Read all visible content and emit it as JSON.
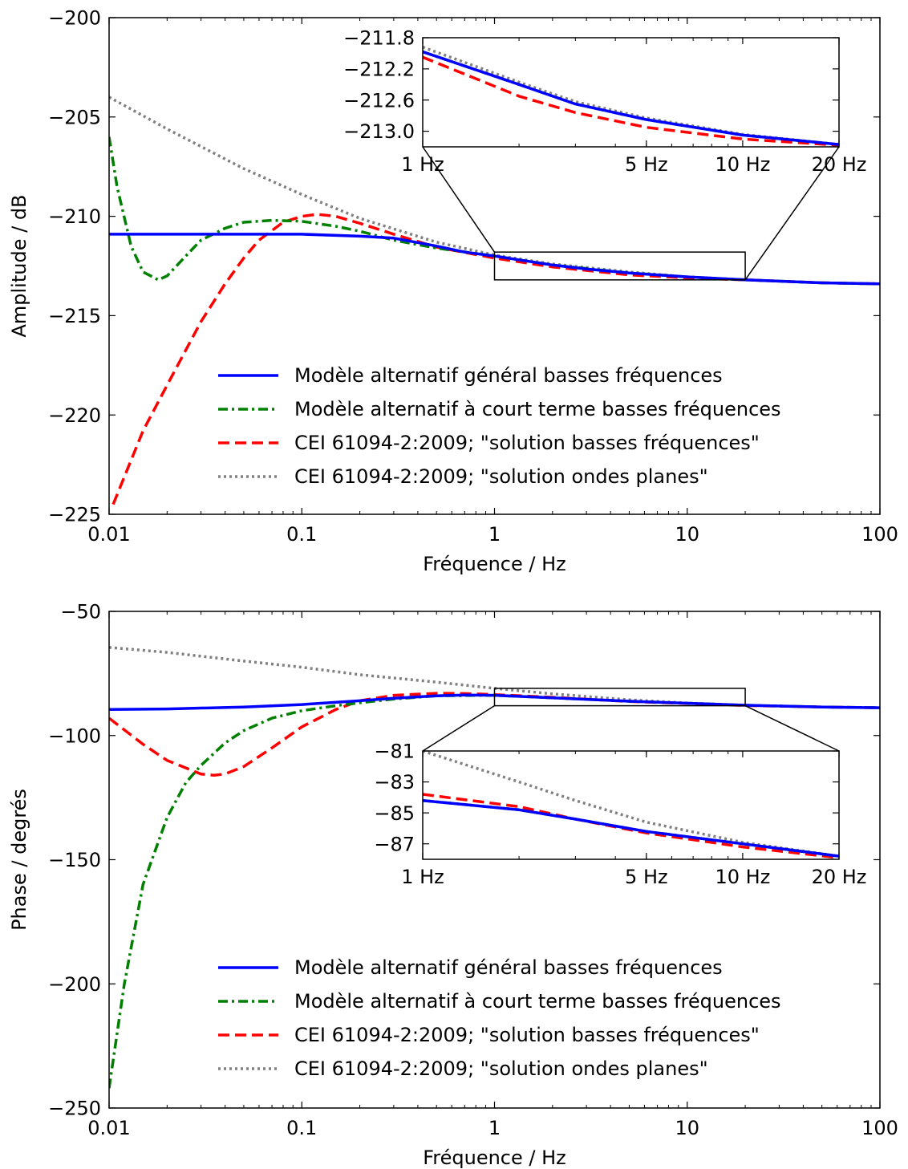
{
  "chart_data": [
    {
      "type": "line",
      "xscale": "log",
      "xlim": [
        0.01,
        100
      ],
      "ylim": [
        -225,
        -200
      ],
      "xlabel": "Fréquence / Hz",
      "ylabel": "Amplitude / dB",
      "xticks": [
        {
          "value": 0.01,
          "label": "0.01"
        },
        {
          "value": 0.1,
          "label": "0.1"
        },
        {
          "value": 1,
          "label": "1"
        },
        {
          "value": 10,
          "label": "10"
        },
        {
          "value": 100,
          "label": "100"
        }
      ],
      "yticks": [
        {
          "value": -200,
          "label": "−200"
        },
        {
          "value": -205,
          "label": "−205"
        },
        {
          "value": -210,
          "label": "−210"
        },
        {
          "value": -215,
          "label": "−215"
        },
        {
          "value": -220,
          "label": "−220"
        },
        {
          "value": -225,
          "label": "−225"
        }
      ],
      "grid": false,
      "legend_position": "lower-right",
      "series": [
        {
          "name": "Modèle alternatif général basses fréquences",
          "color": "#0000ff",
          "style": "solid",
          "x": [
            0.01,
            0.02,
            0.05,
            0.1,
            0.2,
            0.3,
            0.5,
            0.7,
            1,
            2,
            3,
            5,
            10,
            20,
            50,
            100
          ],
          "y": [
            -210.9,
            -210.9,
            -210.9,
            -210.9,
            -211.0,
            -211.1,
            -211.5,
            -211.8,
            -212.0,
            -212.45,
            -212.65,
            -212.85,
            -213.05,
            -213.2,
            -213.35,
            -213.4
          ]
        },
        {
          "name": "Modèle alternatif à court terme basses fréquences",
          "color": "#008000",
          "style": "dashdot",
          "x": [
            0.01,
            0.011,
            0.013,
            0.015,
            0.018,
            0.02,
            0.025,
            0.03,
            0.04,
            0.05,
            0.07,
            0.1,
            0.15,
            0.2,
            0.3,
            0.5,
            1,
            2,
            5,
            10,
            20,
            50,
            100
          ],
          "y": [
            -206.0,
            -208.5,
            -211.5,
            -212.8,
            -213.2,
            -213.0,
            -212.0,
            -211.2,
            -210.6,
            -210.3,
            -210.2,
            -210.25,
            -210.5,
            -210.75,
            -211.2,
            -211.6,
            -212.0,
            -212.45,
            -212.85,
            -213.05,
            -213.2,
            -213.35,
            -213.4
          ]
        },
        {
          "name": "CEI 61094-2:2009; \"solution basses fréquences\"",
          "color": "#ff0000",
          "style": "dashed",
          "x": [
            0.0105,
            0.015,
            0.02,
            0.03,
            0.04,
            0.05,
            0.06,
            0.08,
            0.1,
            0.12,
            0.15,
            0.2,
            0.3,
            0.5,
            1,
            2,
            5,
            10,
            20,
            50,
            100
          ],
          "y": [
            -224.5,
            -220.8,
            -218.5,
            -215.3,
            -213.4,
            -212.1,
            -211.2,
            -210.3,
            -210.0,
            -209.9,
            -210.0,
            -210.35,
            -210.9,
            -211.55,
            -212.1,
            -212.55,
            -212.95,
            -213.1,
            -213.2,
            -213.35,
            -213.4
          ]
        },
        {
          "name": "CEI 61094-2:2009; \"solution ondes planes\"",
          "color": "#808080",
          "style": "dotted",
          "x": [
            0.01,
            0.02,
            0.05,
            0.1,
            0.2,
            0.5,
            1,
            2,
            5,
            10,
            20,
            50,
            100
          ],
          "y": [
            -204.0,
            -205.6,
            -207.6,
            -208.9,
            -210.1,
            -211.3,
            -211.95,
            -212.4,
            -212.8,
            -213.05,
            -213.2,
            -213.35,
            -213.4
          ]
        }
      ],
      "zoom_region": {
        "xlim": [
          1,
          20
        ],
        "ylim": [
          -213.2,
          -211.8
        ]
      },
      "inset": {
        "xlim": [
          1,
          20
        ],
        "ylim": [
          -213.2,
          -211.8
        ],
        "xticks": [
          {
            "value": 1,
            "label": "1 Hz"
          },
          {
            "value": 5,
            "label": "5 Hz"
          },
          {
            "value": 10,
            "label": "10 Hz"
          },
          {
            "value": 20,
            "label": "20 Hz"
          }
        ],
        "yticks": [
          {
            "value": -211.8,
            "label": "−211.8"
          },
          {
            "value": -212.2,
            "label": "−212.2"
          },
          {
            "value": -212.6,
            "label": "−212.6"
          },
          {
            "value": -213.0,
            "label": "−213.0"
          }
        ],
        "series": [
          {
            "color": "#0000ff",
            "style": "solid",
            "x": [
              1,
              2,
              3,
              5,
              10,
              20
            ],
            "y": [
              -211.98,
              -212.4,
              -212.65,
              -212.85,
              -213.05,
              -213.17
            ]
          },
          {
            "color": "#008000",
            "style": "dashdot",
            "x": [
              1,
              2,
              3,
              5,
              10,
              20
            ],
            "y": [
              -211.98,
              -212.4,
              -212.65,
              -212.85,
              -213.05,
              -213.17
            ]
          },
          {
            "color": "#ff0000",
            "style": "dashed",
            "x": [
              1,
              2,
              3,
              5,
              10,
              20
            ],
            "y": [
              -212.05,
              -212.55,
              -212.76,
              -212.95,
              -213.1,
              -213.18
            ]
          },
          {
            "color": "#808080",
            "style": "dotted",
            "x": [
              1,
              2,
              3,
              5,
              10,
              20
            ],
            "y": [
              -211.92,
              -212.37,
              -212.62,
              -212.83,
              -213.04,
              -213.17
            ]
          }
        ]
      }
    },
    {
      "type": "line",
      "xscale": "log",
      "xlim": [
        0.01,
        100
      ],
      "ylim": [
        -250,
        -50
      ],
      "xlabel": "Fréquence / Hz",
      "ylabel": "Phase / degrés",
      "xticks": [
        {
          "value": 0.01,
          "label": "0.01"
        },
        {
          "value": 0.1,
          "label": "0.1"
        },
        {
          "value": 1,
          "label": "1"
        },
        {
          "value": 10,
          "label": "10"
        },
        {
          "value": 100,
          "label": "100"
        }
      ],
      "yticks": [
        {
          "value": -50,
          "label": "−50"
        },
        {
          "value": -100,
          "label": "−100"
        },
        {
          "value": -150,
          "label": "−150"
        },
        {
          "value": -200,
          "label": "−200"
        },
        {
          "value": -250,
          "label": "−250"
        }
      ],
      "grid": false,
      "legend_position": "lower-right",
      "series": [
        {
          "name": "Modèle alternatif général basses fréquences",
          "color": "#0000ff",
          "style": "solid",
          "x": [
            0.01,
            0.02,
            0.05,
            0.1,
            0.2,
            0.3,
            0.5,
            0.7,
            1,
            2,
            5,
            10,
            20,
            50,
            100
          ],
          "y": [
            -89.5,
            -89.3,
            -88.5,
            -87.5,
            -86.0,
            -85.0,
            -84.0,
            -83.7,
            -83.8,
            -84.8,
            -86.2,
            -87.0,
            -87.8,
            -88.5,
            -88.8
          ]
        },
        {
          "name": "Modèle alternatif à court terme basses fréquences",
          "color": "#008000",
          "style": "dashdot",
          "x": [
            0.01,
            0.012,
            0.015,
            0.02,
            0.025,
            0.03,
            0.04,
            0.05,
            0.07,
            0.1,
            0.15,
            0.2,
            0.3,
            0.5,
            1,
            2,
            5,
            10,
            20,
            50,
            100
          ],
          "y": [
            -242.0,
            -200.0,
            -160.0,
            -133.0,
            -119.0,
            -112.0,
            -103.0,
            -98.0,
            -93.0,
            -90.0,
            -88.0,
            -86.8,
            -85.3,
            -84.0,
            -83.8,
            -84.8,
            -86.2,
            -87.0,
            -87.8,
            -88.5,
            -88.8
          ]
        },
        {
          "name": "CEI 61094-2:2009; \"solution basses fréquences\"",
          "color": "#ff0000",
          "style": "dashed",
          "x": [
            0.01,
            0.015,
            0.02,
            0.03,
            0.035,
            0.04,
            0.05,
            0.07,
            0.1,
            0.15,
            0.2,
            0.3,
            0.5,
            0.7,
            1,
            2,
            5,
            10,
            20,
            50,
            100
          ],
          "y": [
            -93.0,
            -103.5,
            -110.0,
            -115.5,
            -116.0,
            -115.5,
            -112.5,
            -105.0,
            -96.5,
            -89.5,
            -86.0,
            -83.8,
            -83.0,
            -83.1,
            -83.5,
            -84.6,
            -86.3,
            -87.1,
            -87.9,
            -88.5,
            -88.8
          ]
        },
        {
          "name": "CEI 61094-2:2009; \"solution ondes planes\"",
          "color": "#808080",
          "style": "dotted",
          "x": [
            0.01,
            0.02,
            0.05,
            0.1,
            0.2,
            0.5,
            1,
            2,
            5,
            10,
            20,
            50,
            100
          ],
          "y": [
            -64.5,
            -66.5,
            -70.0,
            -72.5,
            -75.5,
            -78.5,
            -81.0,
            -83.2,
            -85.6,
            -86.9,
            -87.8,
            -88.5,
            -88.8
          ]
        }
      ],
      "zoom_region": {
        "xlim": [
          1,
          20
        ],
        "ylim": [
          -88,
          -81
        ]
      },
      "inset": {
        "xlim": [
          1,
          20
        ],
        "ylim": [
          -88,
          -81
        ],
        "xticks": [
          {
            "value": 1,
            "label": "1 Hz"
          },
          {
            "value": 5,
            "label": "5 Hz"
          },
          {
            "value": 10,
            "label": "10 Hz"
          },
          {
            "value": 20,
            "label": "20 Hz"
          }
        ],
        "yticks": [
          {
            "value": -81,
            "label": "−81"
          },
          {
            "value": -83,
            "label": "−83"
          },
          {
            "value": -85,
            "label": "−85"
          },
          {
            "value": -87,
            "label": "−87"
          }
        ],
        "series": [
          {
            "color": "#0000ff",
            "style": "solid",
            "x": [
              1,
              2,
              3,
              5,
              10,
              20
            ],
            "y": [
              -84.2,
              -84.8,
              -85.4,
              -86.2,
              -87.0,
              -87.8
            ]
          },
          {
            "color": "#008000",
            "style": "dashdot",
            "x": [
              1,
              2,
              3,
              5,
              10,
              20
            ],
            "y": [
              -84.2,
              -84.8,
              -85.4,
              -86.2,
              -87.0,
              -87.8
            ]
          },
          {
            "color": "#ff0000",
            "style": "dashed",
            "x": [
              1,
              2,
              3,
              5,
              10,
              20
            ],
            "y": [
              -83.8,
              -84.6,
              -85.4,
              -86.3,
              -87.2,
              -87.9
            ]
          },
          {
            "color": "#808080",
            "style": "dotted",
            "x": [
              1,
              2,
              3,
              5,
              10,
              20
            ],
            "y": [
              -81.0,
              -83.0,
              -84.2,
              -85.6,
              -86.9,
              -87.8
            ]
          }
        ]
      }
    }
  ]
}
